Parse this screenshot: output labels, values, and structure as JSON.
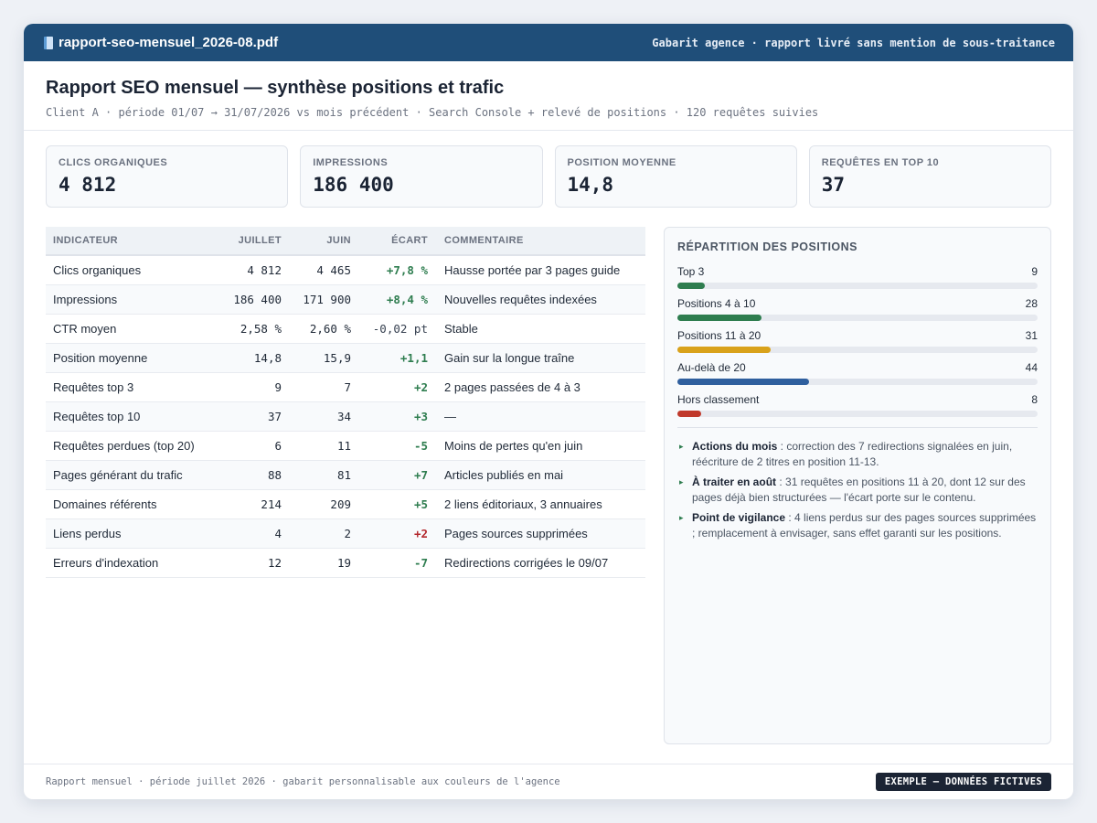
{
  "window": {
    "filename": "rapport-seo-mensuel_2026-08.pdf",
    "file_icon": "document-icon",
    "note": "Gabarit agence · rapport livré sans mention de sous-traitance"
  },
  "header": {
    "title": "Rapport SEO mensuel — synthèse positions et trafic",
    "subtitle": "Client A · période 01/07 → 31/07/2026 vs mois précédent · Search Console + relevé de positions · 120 requêtes suivies"
  },
  "kpis": [
    {
      "label": "CLICS ORGANIQUES",
      "value": "4 812"
    },
    {
      "label": "IMPRESSIONS",
      "value": "186 400"
    },
    {
      "label": "POSITION MOYENNE",
      "value": "14,8"
    },
    {
      "label": "REQUÊTES EN TOP 10",
      "value": "37"
    }
  ],
  "table": {
    "headers": {
      "indicator": "INDICATEUR",
      "july": "JUILLET",
      "june": "JUIN",
      "delta": "ÉCART",
      "comment": "COMMENTAIRE"
    },
    "rows": [
      {
        "indicator": "Clics organiques",
        "july": "4 812",
        "june": "4 465",
        "delta": "+7,8 %",
        "trend": "pos",
        "comment": "Hausse portée par 3 pages guide"
      },
      {
        "indicator": "Impressions",
        "july": "186 400",
        "june": "171 900",
        "delta": "+8,4 %",
        "trend": "pos",
        "comment": "Nouvelles requêtes indexées"
      },
      {
        "indicator": "CTR moyen",
        "july": "2,58 %",
        "june": "2,60 %",
        "delta": "-0,02 pt",
        "trend": "neu",
        "comment": "Stable"
      },
      {
        "indicator": "Position moyenne",
        "july": "14,8",
        "june": "15,9",
        "delta": "+1,1",
        "trend": "pos",
        "comment": "Gain sur la longue traîne"
      },
      {
        "indicator": "Requêtes top 3",
        "july": "9",
        "june": "7",
        "delta": "+2",
        "trend": "pos",
        "comment": "2 pages passées de 4 à 3"
      },
      {
        "indicator": "Requêtes top 10",
        "july": "37",
        "june": "34",
        "delta": "+3",
        "trend": "pos",
        "comment": "—"
      },
      {
        "indicator": "Requêtes perdues (top 20)",
        "july": "6",
        "june": "11",
        "delta": "-5",
        "trend": "pos",
        "comment": "Moins de pertes qu'en juin"
      },
      {
        "indicator": "Pages générant du trafic",
        "july": "88",
        "june": "81",
        "delta": "+7",
        "trend": "pos",
        "comment": "Articles publiés en mai"
      },
      {
        "indicator": "Domaines référents",
        "july": "214",
        "june": "209",
        "delta": "+5",
        "trend": "pos",
        "comment": "2 liens éditoriaux, 3 annuaires"
      },
      {
        "indicator": "Liens perdus",
        "july": "4",
        "june": "2",
        "delta": "+2",
        "trend": "neg",
        "comment": "Pages sources supprimées"
      },
      {
        "indicator": "Erreurs d'indexation",
        "july": "12",
        "june": "19",
        "delta": "-7",
        "trend": "pos",
        "comment": "Redirections corrigées le 09/07"
      }
    ]
  },
  "distribution": {
    "title": "RÉPARTITION DES POSITIONS",
    "max": 120,
    "items": [
      {
        "label": "Top 3",
        "value": 9,
        "color": "#2e7d4f"
      },
      {
        "label": "Positions 4 à 10",
        "value": 28,
        "color": "#2e7d4f"
      },
      {
        "label": "Positions 11 à 20",
        "value": 31,
        "color": "#d9a21b"
      },
      {
        "label": "Au-delà de 20",
        "value": 44,
        "color": "#2f5f9e"
      },
      {
        "label": "Hors classement",
        "value": 8,
        "color": "#c0392b"
      }
    ]
  },
  "notes": [
    {
      "title": "Actions du mois",
      "text": " : correction des 7 redirections signalées en juin, réécriture de 2 titres en position 11-13."
    },
    {
      "title": "À traiter en août",
      "text": " : 31 requêtes en positions 11 à 20, dont 12 sur des pages déjà bien structurées — l'écart porte sur le contenu."
    },
    {
      "title": "Point de vigilance",
      "text": " : 4 liens perdus sur des pages sources supprimées ; remplacement à envisager, sans effet garanti sur les positions."
    }
  ],
  "footer": {
    "text": "Rapport mensuel · période juillet 2026 · gabarit personnalisable aux couleurs de l'agence",
    "badge": "EXEMPLE — DONNÉES FICTIVES"
  },
  "colors": {
    "titlebar": "#1f4e79",
    "positive": "#2e7d4f",
    "negative": "#b3282d"
  }
}
